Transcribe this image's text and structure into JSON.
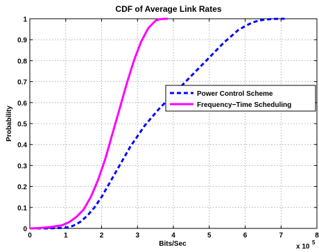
{
  "chart_data": {
    "type": "line",
    "title": "CDF of Average Link Rates",
    "xlabel": "Bits/Sec",
    "ylabel": "Probability",
    "x_multiplier_label": "x 10",
    "x_multiplier_exponent": "5",
    "xlim": [
      0,
      8
    ],
    "ylim": [
      0,
      1
    ],
    "xticks": [
      "0",
      "1",
      "2",
      "3",
      "4",
      "5",
      "6",
      "7",
      "8"
    ],
    "yticks": [
      "0",
      "0.1",
      "0.2",
      "0.3",
      "0.4",
      "0.5",
      "0.6",
      "0.7",
      "0.8",
      "0.9",
      "1"
    ],
    "grid": true,
    "legend_position": "right",
    "series": [
      {
        "name": "Power Control Scheme",
        "color": "#0000ff",
        "style": "dashed",
        "x": [
          0,
          0.5,
          1.0,
          1.2,
          1.4,
          1.6,
          1.8,
          2.0,
          2.2,
          2.4,
          2.6,
          2.8,
          3.0,
          3.2,
          3.4,
          3.6,
          3.8,
          4.0,
          4.2,
          4.4,
          4.6,
          4.8,
          5.0,
          5.2,
          5.4,
          5.6,
          5.8,
          6.0,
          6.2,
          6.4,
          6.6,
          6.8,
          7.0,
          7.1
        ],
        "y": [
          0,
          0.0,
          0.003,
          0.012,
          0.03,
          0.06,
          0.1,
          0.15,
          0.21,
          0.27,
          0.33,
          0.39,
          0.44,
          0.49,
          0.53,
          0.57,
          0.605,
          0.64,
          0.675,
          0.71,
          0.745,
          0.78,
          0.815,
          0.85,
          0.885,
          0.915,
          0.945,
          0.965,
          0.982,
          0.992,
          0.997,
          0.999,
          1.0,
          1.0
        ]
      },
      {
        "name": "Frequency−Time Scheduling",
        "color": "#ff00ff",
        "style": "solid",
        "x": [
          0,
          0.3,
          0.6,
          0.9,
          1.1,
          1.3,
          1.5,
          1.7,
          1.9,
          2.1,
          2.3,
          2.5,
          2.7,
          2.9,
          3.1,
          3.3,
          3.5,
          3.6,
          3.7,
          3.85
        ],
        "y": [
          0,
          0.002,
          0.007,
          0.015,
          0.03,
          0.055,
          0.09,
          0.15,
          0.23,
          0.33,
          0.45,
          0.57,
          0.69,
          0.8,
          0.89,
          0.955,
          0.99,
          0.997,
          0.999,
          1.0
        ]
      }
    ]
  }
}
